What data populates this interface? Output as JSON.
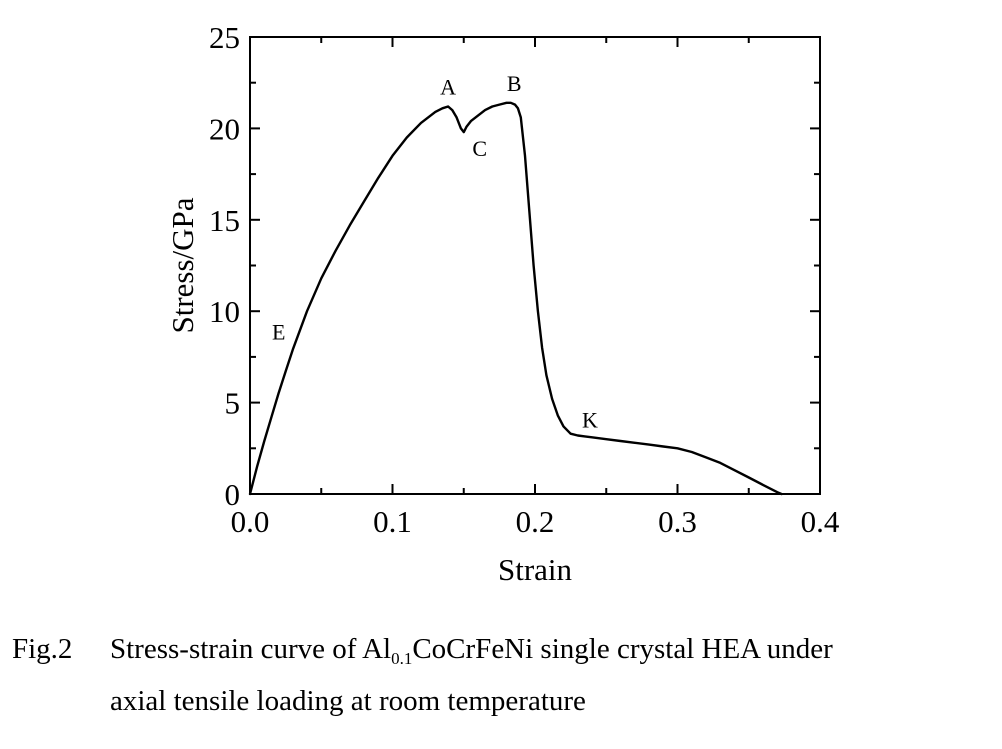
{
  "chart_data": {
    "type": "line",
    "xlabel": "Strain",
    "ylabel": "Stress/GPa",
    "xlim": [
      0.0,
      0.4
    ],
    "ylim": [
      0,
      25
    ],
    "xticks": [
      "0.0",
      "0.1",
      "0.2",
      "0.3",
      "0.4"
    ],
    "yticks": [
      "0",
      "5",
      "10",
      "15",
      "20",
      "25"
    ],
    "grid": false,
    "series": [
      {
        "x": [
          0.0,
          0.005,
          0.01,
          0.015,
          0.02,
          0.025,
          0.03,
          0.04,
          0.05,
          0.06,
          0.07,
          0.08,
          0.09,
          0.1,
          0.11,
          0.12,
          0.13,
          0.135,
          0.139,
          0.142,
          0.145,
          0.148,
          0.15,
          0.152,
          0.155,
          0.16,
          0.165,
          0.17,
          0.175,
          0.18,
          0.183,
          0.186,
          0.188,
          0.19,
          0.193,
          0.196,
          0.199,
          0.202,
          0.205,
          0.208,
          0.212,
          0.216,
          0.22,
          0.225,
          0.23,
          0.235,
          0.24,
          0.25,
          0.26,
          0.27,
          0.28,
          0.29,
          0.3,
          0.31,
          0.32,
          0.33,
          0.34,
          0.35,
          0.36,
          0.37,
          0.373
        ],
        "values": [
          0.0,
          1.5,
          2.9,
          4.2,
          5.5,
          6.7,
          7.9,
          10.0,
          11.8,
          13.3,
          14.7,
          16.0,
          17.3,
          18.5,
          19.5,
          20.3,
          20.9,
          21.1,
          21.2,
          21.0,
          20.6,
          20.0,
          19.8,
          20.1,
          20.4,
          20.7,
          21.0,
          21.2,
          21.3,
          21.4,
          21.4,
          21.3,
          21.1,
          20.6,
          18.5,
          15.5,
          12.5,
          10.0,
          8.0,
          6.5,
          5.2,
          4.3,
          3.7,
          3.3,
          3.2,
          3.15,
          3.1,
          3.0,
          2.9,
          2.8,
          2.7,
          2.6,
          2.5,
          2.3,
          2.0,
          1.7,
          1.3,
          0.9,
          0.5,
          0.1,
          0.0
        ]
      }
    ],
    "annotations": [
      {
        "text": "A",
        "x": 0.139,
        "y": 21.2
      },
      {
        "text": "B",
        "x": 0.184,
        "y": 21.4
      },
      {
        "text": "C",
        "x": 0.15,
        "y": 19.8
      },
      {
        "text": "E",
        "x": 0.03,
        "y": 7.9
      },
      {
        "text": "K",
        "x": 0.24,
        "y": 3.1
      }
    ]
  },
  "caption": {
    "fig_label": "Fig.2",
    "line1_pre": "Stress-strain curve of Al",
    "line1_sub": "0.1",
    "line1_post": "CoCrFeNi single crystal HEA under",
    "line2": "axial tensile loading at room temperature"
  }
}
